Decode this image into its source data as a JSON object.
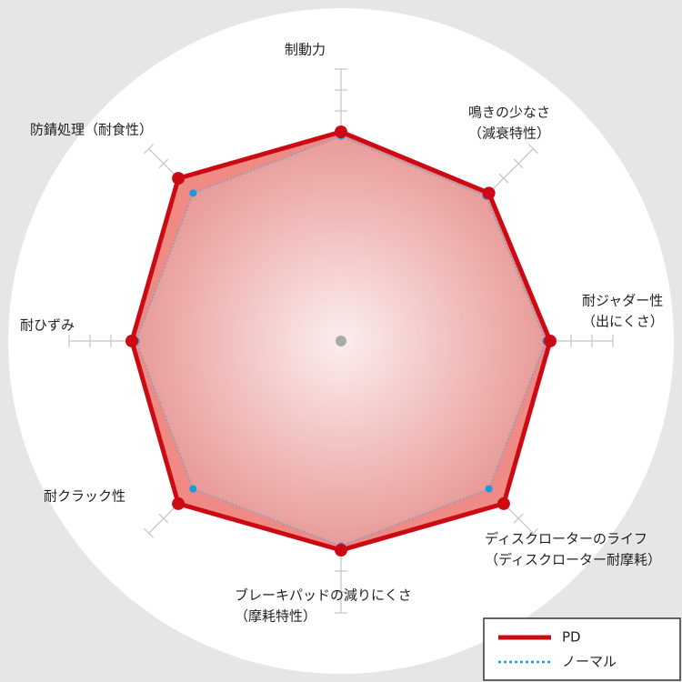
{
  "chart_data": {
    "type": "radar",
    "categories": [
      [
        "制動力"
      ],
      [
        "鳴きの少なさ",
        "（減衰特性）"
      ],
      [
        "耐ジャダー性",
        "（出にくさ）"
      ],
      [
        "ディスクローターのライフ",
        "（ディスクローター耐摩耗）"
      ],
      [
        "ブレーキパッドの減りにくさ",
        "（摩耗特性）"
      ],
      [
        "耐クラック性"
      ],
      [
        "耐ひずみ"
      ],
      [
        "防錆処理（耐食性）"
      ]
    ],
    "series": [
      {
        "name": "PD",
        "color": "#cc0a14",
        "values": [
          10,
          10,
          10,
          11,
          10,
          11,
          10,
          11
        ]
      },
      {
        "name": "ノーマル",
        "color": "#1a9be0",
        "values": [
          9.8,
          9.8,
          9.8,
          10,
          9.8,
          10,
          9.8,
          10
        ]
      }
    ],
    "rlim": [
      0,
      13
    ],
    "rticks": [
      1,
      2,
      3,
      4,
      5,
      6,
      7,
      8,
      9,
      10,
      11,
      12,
      13
    ]
  }
}
